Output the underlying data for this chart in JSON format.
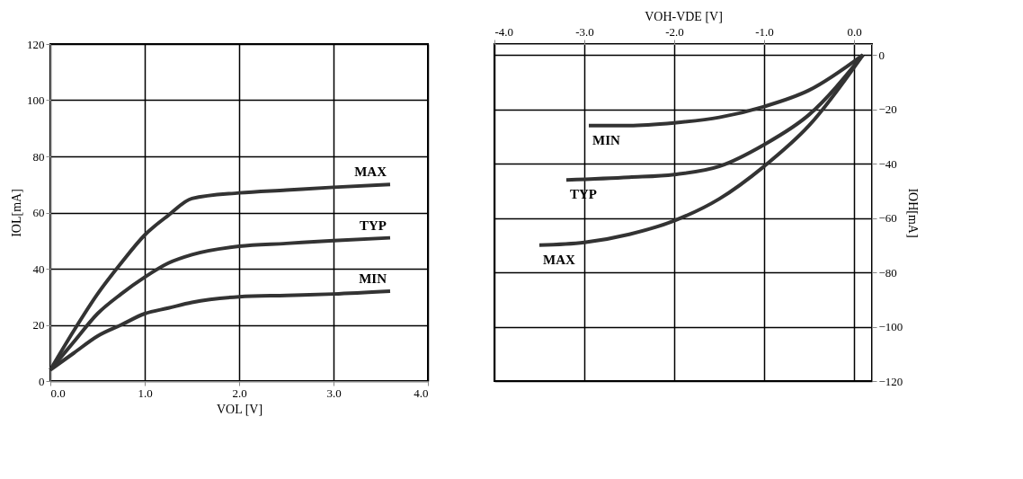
{
  "chart_data": [
    {
      "type": "line",
      "xlabel": "VOL [V]",
      "ylabel": "IOL[mA]",
      "xlim": [
        0,
        4
      ],
      "ylim": [
        0,
        120
      ],
      "xticks": [
        {
          "value": 0,
          "label": "0.0"
        },
        {
          "value": 1,
          "label": "1.0"
        },
        {
          "value": 2,
          "label": "2.0"
        },
        {
          "value": 3,
          "label": "3.0"
        },
        {
          "value": 4,
          "label": "4.0"
        }
      ],
      "yticks": [
        0,
        20,
        40,
        60,
        80,
        100,
        120
      ],
      "grid": true,
      "series": [
        {
          "name": "MAX",
          "color": "#333333",
          "x": [
            0,
            0.25,
            0.5,
            0.75,
            1.0,
            1.25,
            1.5,
            2.0,
            2.5,
            3.0,
            3.6
          ],
          "values": [
            4,
            18,
            31,
            42,
            52,
            59,
            65,
            67,
            68,
            69,
            70
          ]
        },
        {
          "name": "TYP",
          "color": "#333333",
          "x": [
            0,
            0.25,
            0.5,
            0.75,
            1.0,
            1.25,
            1.5,
            2.0,
            2.5,
            3.0,
            3.6
          ],
          "values": [
            4,
            14,
            24,
            31,
            37,
            42,
            45,
            48,
            49,
            50,
            51
          ]
        },
        {
          "name": "MIN",
          "color": "#333333",
          "x": [
            0,
            0.25,
            0.5,
            0.75,
            1.0,
            1.25,
            1.5,
            2.0,
            2.5,
            3.0,
            3.6
          ],
          "values": [
            4,
            10,
            16,
            20,
            24,
            26,
            28,
            30,
            30.5,
            31,
            32
          ]
        }
      ],
      "line_style": "solid"
    },
    {
      "type": "line",
      "xlabel": "VOH-VDE [V]",
      "ylabel": "IOH[mA]",
      "xlim": [
        -4,
        0.2
      ],
      "ylim": [
        -120,
        4
      ],
      "xticks": [
        {
          "value": -4,
          "label": "-4.0"
        },
        {
          "value": -3,
          "label": "-3.0"
        },
        {
          "value": -2,
          "label": "-2.0"
        },
        {
          "value": -1,
          "label": "-1.0"
        },
        {
          "value": 0,
          "label": "0.0"
        }
      ],
      "yticks": [
        0,
        -20,
        -40,
        -60,
        -80,
        -100,
        -120
      ],
      "grid": true,
      "series": [
        {
          "name": "MIN",
          "color": "#333333",
          "x": [
            -2.95,
            -2.5,
            -2.0,
            -1.5,
            -1.0,
            -0.5,
            0.1
          ],
          "values": [
            -26,
            -26,
            -25,
            -23,
            -19,
            -13,
            0
          ]
        },
        {
          "name": "TYP",
          "color": "#333333",
          "x": [
            -3.2,
            -2.5,
            -2.0,
            -1.5,
            -1.0,
            -0.5,
            0.1
          ],
          "values": [
            -46,
            -45,
            -44,
            -41,
            -33,
            -22,
            0
          ]
        },
        {
          "name": "MAX",
          "color": "#333333",
          "x": [
            -3.5,
            -3.0,
            -2.5,
            -2.0,
            -1.5,
            -1.0,
            -0.5,
            0.1
          ],
          "values": [
            -70,
            -69,
            -66,
            -61,
            -53,
            -41,
            -26,
            0
          ]
        }
      ],
      "line_style": "solid"
    }
  ]
}
